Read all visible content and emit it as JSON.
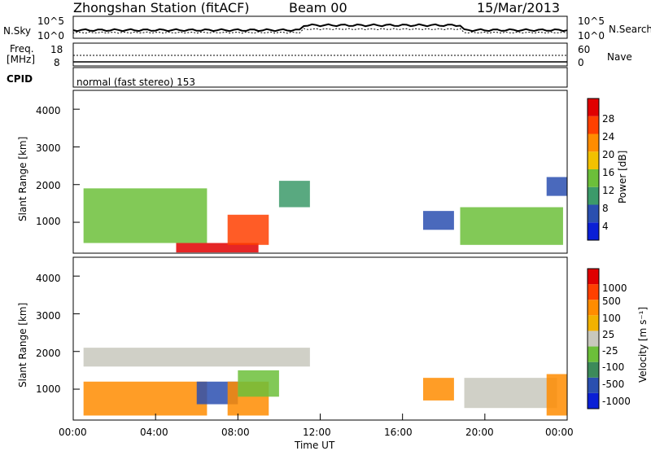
{
  "header": {
    "station": "Zhongshan Station (fitACF)",
    "beam": "Beam 00",
    "date": "15/Mar/2013"
  },
  "sky_panel": {
    "left_label": "N.Sky",
    "right_label": "N.Search",
    "left_ticks": [
      "10^5",
      "10^0"
    ],
    "right_ticks": [
      "10^5",
      "10^0"
    ]
  },
  "freq_panel": {
    "left_label_top": "Freq.",
    "left_label_bottom": "[MHz]",
    "right_label": "Nave",
    "left_ticks": [
      "18",
      "8"
    ],
    "right_ticks": [
      "60",
      "0"
    ]
  },
  "cpid": {
    "label": "CPID",
    "text": "normal (fast stereo) 153"
  },
  "colors": {
    "power_scale": [
      "#0a1fd6",
      "#2a4fb0",
      "#3c9a6a",
      "#6cbf3a",
      "#f2c100",
      "#ff8c00",
      "#ff4000",
      "#e00000"
    ],
    "velocity_scale": [
      "#e00000",
      "#ff4000",
      "#ff8c00",
      "#f2b200",
      "#c8c8bd",
      "#6cbf3a",
      "#3c8a5a",
      "#2a4fb0",
      "#0a1fd6"
    ]
  },
  "chart_data": [
    {
      "type": "heatmap",
      "panel": "power",
      "ylabel": "Slant Range [km]",
      "ylim": [
        180,
        4500
      ],
      "yticks": [
        "1000",
        "2000",
        "3000",
        "4000"
      ],
      "xlim": [
        "00:00",
        "24:00"
      ],
      "colorbar_label": "Power [dB]",
      "colorbar_ticks": [
        "4",
        "8",
        "12",
        "16",
        "20",
        "24",
        "28"
      ],
      "regions": [
        {
          "t0": 0.5,
          "t1": 6.5,
          "r0": 450,
          "r1": 1900,
          "level": 3
        },
        {
          "t0": 5.0,
          "t1": 9.0,
          "r0": 200,
          "r1": 450,
          "level": 7
        },
        {
          "t0": 7.5,
          "t1": 9.5,
          "r0": 400,
          "r1": 1200,
          "level": 6
        },
        {
          "t0": 10.0,
          "t1": 11.5,
          "r0": 1400,
          "r1": 2100,
          "level": 2
        },
        {
          "t0": 17.0,
          "t1": 18.5,
          "r0": 800,
          "r1": 1300,
          "level": 1
        },
        {
          "t0": 18.8,
          "t1": 23.8,
          "r0": 400,
          "r1": 1400,
          "level": 3
        },
        {
          "t0": 23.0,
          "t1": 24.0,
          "r0": 1700,
          "r1": 2200,
          "level": 1
        }
      ]
    },
    {
      "type": "heatmap",
      "panel": "velocity",
      "xlabel": "Time UT",
      "ylabel": "Slant Range [km]",
      "ylim": [
        180,
        4500
      ],
      "yticks": [
        "1000",
        "2000",
        "3000",
        "4000"
      ],
      "xticks": [
        "00:00",
        "04:00",
        "08:00",
        "12:00",
        "16:00",
        "20:00",
        "00:00"
      ],
      "colorbar_label": "Velocity [m s⁻¹]",
      "colorbar_ticks": [
        "1000",
        "500",
        "100",
        "25",
        "-25",
        "-100",
        "-500",
        "-1000"
      ],
      "regions": [
        {
          "t0": 0.5,
          "t1": 11.5,
          "r0": 1600,
          "r1": 2100,
          "level": 4
        },
        {
          "t0": 0.5,
          "t1": 6.5,
          "r0": 300,
          "r1": 1200,
          "level": 2
        },
        {
          "t0": 6.0,
          "t1": 8.0,
          "r0": 600,
          "r1": 1200,
          "level": 7
        },
        {
          "t0": 7.5,
          "t1": 9.5,
          "r0": 300,
          "r1": 1200,
          "level": 2
        },
        {
          "t0": 8.0,
          "t1": 10.0,
          "r0": 800,
          "r1": 1500,
          "level": 5
        },
        {
          "t0": 17.0,
          "t1": 18.5,
          "r0": 700,
          "r1": 1300,
          "level": 2
        },
        {
          "t0": 19.0,
          "t1": 23.5,
          "r0": 500,
          "r1": 1300,
          "level": 4
        },
        {
          "t0": 23.0,
          "t1": 24.0,
          "r0": 300,
          "r1": 1400,
          "level": 2
        }
      ]
    }
  ]
}
